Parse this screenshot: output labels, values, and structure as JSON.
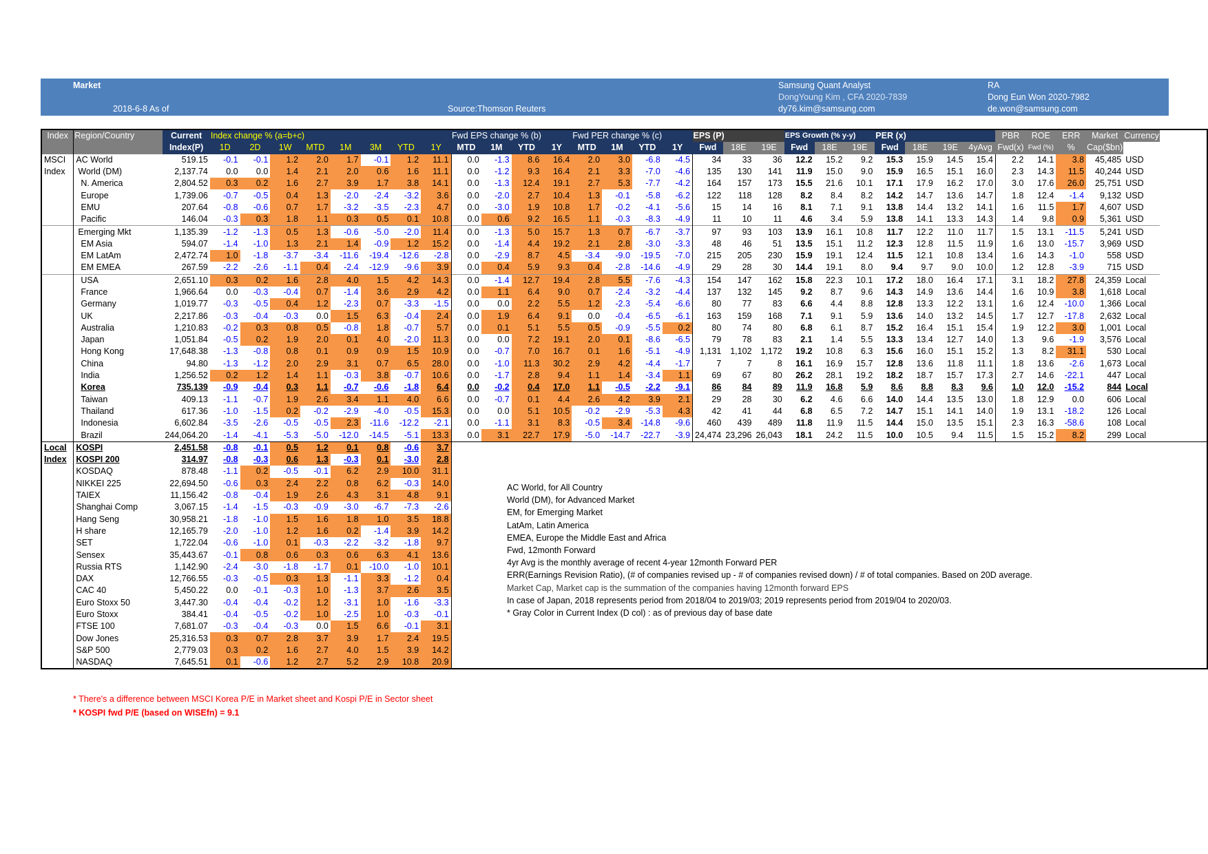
{
  "banner": {
    "market": "Market",
    "date": "2018-6-8 As of",
    "source": "Source:Thomson Reuters",
    "analyst_title": "Samsung Quant Analyst",
    "analyst_name": "DongYoung Kim , CFA 2020-7839",
    "analyst_email": "dy76.kim@samsung.com",
    "ra_title": "RA",
    "ra_name": "Dong Eun Won 2020-7982",
    "ra_email": "de.won@samsung.com"
  },
  "header1": [
    "Index",
    "Region/Country",
    "Current",
    "Index change % (a=b+c)",
    "Fwd EPS change % (b)",
    "Fwd PER change % (c)",
    "EPS (P)",
    "EPS Growth (% y-y)",
    "PER (x)",
    "PBR",
    "ROE",
    "ERR",
    "Market",
    "Currency"
  ],
  "header2": [
    "Index(P)",
    "1D",
    "2D",
    "1W",
    "MTD",
    "1M",
    "3M",
    "YTD",
    "1Y",
    "MTD",
    "1M",
    "YTD",
    "1Y",
    "MTD",
    "1M",
    "YTD",
    "1Y",
    "Fwd",
    "18E",
    "19E",
    "Fwd",
    "18E",
    "19E",
    "Fwd",
    "18E",
    "19E",
    "4yAvg",
    "Fwd(x)",
    "Fwd (%)",
    "%",
    "Cap($bn)"
  ],
  "groups": [
    "MSCI",
    "Index",
    "Local",
    "Index"
  ],
  "rows": [
    [
      "AC World",
      "519.15",
      "-0.1",
      "-0.1",
      "1.2",
      "2.0",
      "1.7",
      "-0.1",
      "1.2",
      "11.1",
      "0.0",
      "-1.3",
      "8.6",
      "16.4",
      "2.0",
      "3.0",
      "-6.8",
      "-4.5",
      "34",
      "33",
      "36",
      "12.2",
      "15.2",
      "9.2",
      "15.3",
      "15.9",
      "14.5",
      "15.4",
      "2.2",
      "14.1",
      "3.8",
      "45,485",
      "USD"
    ],
    [
      "World (DM)",
      "2,137.74",
      "0.0",
      "0.0",
      "1.4",
      "2.1",
      "2.0",
      "0.6",
      "1.6",
      "11.1",
      "0.0",
      "-1.2",
      "9.3",
      "16.4",
      "2.1",
      "3.3",
      "-7.0",
      "-4.6",
      "135",
      "130",
      "141",
      "11.9",
      "15.0",
      "9.0",
      "15.9",
      "16.5",
      "15.1",
      "16.0",
      "2.3",
      "14.3",
      "11.5",
      "40,244",
      "USD"
    ],
    [
      "N. America",
      "2,804.52",
      "0.3",
      "0.2",
      "1.6",
      "2.7",
      "3.9",
      "1.7",
      "3.8",
      "14.1",
      "0.0",
      "-1.3",
      "12.4",
      "19.1",
      "2.7",
      "5.3",
      "-7.7",
      "-4.2",
      "164",
      "157",
      "173",
      "15.5",
      "21.6",
      "10.1",
      "17.1",
      "17.9",
      "16.2",
      "17.0",
      "3.0",
      "17.6",
      "26.0",
      "25,751",
      "USD"
    ],
    [
      "Europe",
      "1,739.06",
      "-0.7",
      "-0.5",
      "0.4",
      "1.3",
      "-2.0",
      "-2.4",
      "-3.2",
      "3.6",
      "0.0",
      "-2.0",
      "2.7",
      "10.4",
      "1.3",
      "-0.1",
      "-5.8",
      "-6.2",
      "122",
      "118",
      "128",
      "8.2",
      "8.4",
      "8.2",
      "14.2",
      "14.7",
      "13.6",
      "14.7",
      "1.8",
      "12.4",
      "-1.4",
      "9,132",
      "USD"
    ],
    [
      "EMU",
      "207.64",
      "-0.8",
      "-0.6",
      "0.7",
      "1.7",
      "-3.2",
      "-3.5",
      "-2.3",
      "4.7",
      "0.0",
      "-3.0",
      "1.9",
      "10.8",
      "1.7",
      "-0.2",
      "-4.1",
      "-5.6",
      "15",
      "14",
      "16",
      "8.1",
      "7.1",
      "9.1",
      "13.8",
      "14.4",
      "13.2",
      "14.1",
      "1.6",
      "11.5",
      "1.7",
      "4,607",
      "USD"
    ],
    [
      "Pacific",
      "146.04",
      "-0.3",
      "0.3",
      "1.8",
      "1.1",
      "0.3",
      "0.5",
      "0.1",
      "10.8",
      "0.0",
      "0.6",
      "9.2",
      "16.5",
      "1.1",
      "-0.3",
      "-8.3",
      "-4.9",
      "11",
      "10",
      "11",
      "4.6",
      "3.4",
      "5.9",
      "13.8",
      "14.1",
      "13.3",
      "14.3",
      "1.4",
      "9.8",
      "0.9",
      "5,361",
      "USD"
    ],
    [
      "Emerging Mkt",
      "1,135.39",
      "-1.2",
      "-1.3",
      "0.5",
      "1.3",
      "-0.6",
      "-5.0",
      "-2.0",
      "11.4",
      "0.0",
      "-1.3",
      "5.0",
      "15.7",
      "1.3",
      "0.7",
      "-6.7",
      "-3.7",
      "97",
      "93",
      "103",
      "13.9",
      "16.1",
      "10.8",
      "11.7",
      "12.2",
      "11.0",
      "11.7",
      "1.5",
      "13.1",
      "-11.5",
      "5,241",
      "USD"
    ],
    [
      "EM Asia",
      "594.07",
      "-1.4",
      "-1.0",
      "1.3",
      "2.1",
      "1.4",
      "-0.9",
      "1.2",
      "15.2",
      "0.0",
      "-1.4",
      "4.4",
      "19.2",
      "2.1",
      "2.8",
      "-3.0",
      "-3.3",
      "48",
      "46",
      "51",
      "13.5",
      "15.1",
      "11.2",
      "12.3",
      "12.8",
      "11.5",
      "11.9",
      "1.6",
      "13.0",
      "-15.7",
      "3,969",
      "USD"
    ],
    [
      "EM LatAm",
      "2,472.74",
      "1.0",
      "-1.8",
      "-3.7",
      "-3.4",
      "-11.6",
      "-19.4",
      "-12.6",
      "-2.8",
      "0.0",
      "-2.9",
      "8.7",
      "4.5",
      "-3.4",
      "-9.0",
      "-19.5",
      "-7.0",
      "215",
      "205",
      "230",
      "15.9",
      "19.1",
      "12.4",
      "11.5",
      "12.1",
      "10.8",
      "13.4",
      "1.6",
      "14.3",
      "-1.0",
      "558",
      "USD"
    ],
    [
      "EM EMEA",
      "267.59",
      "-2.2",
      "-2.6",
      "-1.1",
      "0.4",
      "-2.4",
      "-12.9",
      "-9.6",
      "3.9",
      "0.0",
      "0.4",
      "5.9",
      "9.3",
      "0.4",
      "-2.8",
      "-14.6",
      "-4.9",
      "29",
      "28",
      "30",
      "14.4",
      "19.1",
      "8.0",
      "9.4",
      "9.7",
      "9.0",
      "10.0",
      "1.2",
      "12.8",
      "-3.9",
      "715",
      "USD"
    ],
    [
      "USA",
      "2,651.10",
      "0.3",
      "0.2",
      "1.6",
      "2.8",
      "4.0",
      "1.5",
      "4.2",
      "14.3",
      "0.0",
      "-1.4",
      "12.7",
      "19.4",
      "2.8",
      "5.5",
      "-7.6",
      "-4.3",
      "154",
      "147",
      "162",
      "15.8",
      "22.3",
      "10.1",
      "17.2",
      "18.0",
      "16.4",
      "17.1",
      "3.1",
      "18.2",
      "27.8",
      "24,359",
      "Local"
    ],
    [
      "France",
      "1,966.64",
      "0.0",
      "-0.3",
      "-0.4",
      "0.7",
      "-1.4",
      "3.6",
      "2.9",
      "4.2",
      "0.0",
      "1.1",
      "6.4",
      "9.0",
      "0.7",
      "-2.4",
      "-3.2",
      "-4.4",
      "137",
      "132",
      "145",
      "9.2",
      "8.7",
      "9.6",
      "14.3",
      "14.9",
      "13.6",
      "14.4",
      "1.6",
      "10.9",
      "3.8",
      "1,618",
      "Local"
    ],
    [
      "Germany",
      "1,019.77",
      "-0.3",
      "-0.5",
      "0.4",
      "1.2",
      "-2.3",
      "0.7",
      "-3.3",
      "-1.5",
      "0.0",
      "0.0",
      "2.2",
      "5.5",
      "1.2",
      "-2.3",
      "-5.4",
      "-6.6",
      "80",
      "77",
      "83",
      "6.6",
      "4.4",
      "8.8",
      "12.8",
      "13.3",
      "12.2",
      "13.1",
      "1.6",
      "12.4",
      "-10.0",
      "1,366",
      "Local"
    ],
    [
      "UK",
      "2,217.86",
      "-0.3",
      "-0.4",
      "-0.3",
      "0.0",
      "1.5",
      "6.3",
      "-0.4",
      "2.4",
      "0.0",
      "1.9",
      "6.4",
      "9.1",
      "0.0",
      "-0.4",
      "-6.5",
      "-6.1",
      "163",
      "159",
      "168",
      "7.1",
      "9.1",
      "5.9",
      "13.6",
      "14.0",
      "13.2",
      "14.5",
      "1.7",
      "12.7",
      "-17.8",
      "2,632",
      "Local"
    ],
    [
      "Australia",
      "1,210.83",
      "-0.2",
      "0.3",
      "0.8",
      "0.5",
      "-0.8",
      "1.8",
      "-0.7",
      "5.7",
      "0.0",
      "0.1",
      "5.1",
      "5.5",
      "0.5",
      "-0.9",
      "-5.5",
      "0.2",
      "80",
      "74",
      "80",
      "6.8",
      "6.1",
      "8.7",
      "15.2",
      "16.4",
      "15.1",
      "15.4",
      "1.9",
      "12.2",
      "3.0",
      "1,001",
      "Local"
    ],
    [
      "Japan",
      "1,051.84",
      "-0.5",
      "0.2",
      "1.9",
      "2.0",
      "0.1",
      "4.0",
      "-2.0",
      "11.3",
      "0.0",
      "0.0",
      "7.2",
      "19.1",
      "2.0",
      "0.1",
      "-8.6",
      "-6.5",
      "79",
      "78",
      "83",
      "2.1",
      "1.4",
      "5.5",
      "13.3",
      "13.4",
      "12.7",
      "14.0",
      "1.3",
      "9.6",
      "-1.9",
      "3,576",
      "Local"
    ],
    [
      "Hong Kong",
      "17,648.38",
      "-1.3",
      "-0.8",
      "0.8",
      "0.1",
      "0.9",
      "0.9",
      "1.5",
      "10.9",
      "0.0",
      "-0.7",
      "7.0",
      "16.7",
      "0.1",
      "1.6",
      "-5.1",
      "-4.9",
      "1,131",
      "1,102",
      "1,172",
      "19.2",
      "10.8",
      "6.3",
      "15.6",
      "16.0",
      "15.1",
      "15.2",
      "1.3",
      "8.2",
      "31.1",
      "530",
      "Local"
    ],
    [
      "China",
      "94.80",
      "-1.3",
      "-1.2",
      "2.0",
      "2.9",
      "3.1",
      "0.7",
      "6.5",
      "28.0",
      "0.0",
      "-1.0",
      "11.3",
      "30.2",
      "2.9",
      "4.2",
      "-4.4",
      "-1.7",
      "7",
      "7",
      "8",
      "16.1",
      "16.9",
      "15.7",
      "12.8",
      "13.6",
      "11.8",
      "11.1",
      "1.8",
      "13.6",
      "-2.6",
      "1,673",
      "Local"
    ],
    [
      "India",
      "1,256.52",
      "0.2",
      "1.2",
      "1.4",
      "1.1",
      "-0.3",
      "3.8",
      "-0.7",
      "10.6",
      "0.0",
      "-1.7",
      "2.8",
      "9.4",
      "1.1",
      "1.4",
      "-3.4",
      "1.1",
      "69",
      "67",
      "80",
      "26.2",
      "28.1",
      "19.2",
      "18.2",
      "18.7",
      "15.7",
      "17.3",
      "2.7",
      "14.6",
      "-22.1",
      "447",
      "Local"
    ],
    [
      "Korea",
      "735.139",
      "-0.9",
      "-0.4",
      "0.3",
      "1.1",
      "-0.7",
      "-0.6",
      "-1.8",
      "6.4",
      "0.0",
      "-0.2",
      "0.4",
      "17.0",
      "1.1",
      "-0.5",
      "-2.2",
      "-9.1",
      "86",
      "84",
      "89",
      "11.9",
      "16.8",
      "5.9",
      "8.6",
      "8.8",
      "8.3",
      "9.6",
      "1.0",
      "12.0",
      "-15.2",
      "844",
      "Local"
    ],
    [
      "Taiwan",
      "409.13",
      "-1.1",
      "-0.7",
      "1.9",
      "2.6",
      "3.4",
      "1.1",
      "4.0",
      "6.6",
      "0.0",
      "-0.7",
      "0.1",
      "4.4",
      "2.6",
      "4.2",
      "3.9",
      "2.1",
      "29",
      "28",
      "30",
      "6.2",
      "4.6",
      "6.6",
      "14.0",
      "14.4",
      "13.5",
      "13.0",
      "1.8",
      "12.9",
      "0.0",
      "606",
      "Local"
    ],
    [
      "Thailand",
      "617.36",
      "-1.0",
      "-1.5",
      "0.2",
      "-0.2",
      "-2.9",
      "-4.0",
      "-0.5",
      "15.3",
      "0.0",
      "0.0",
      "5.1",
      "10.5",
      "-0.2",
      "-2.9",
      "-5.3",
      "4.3",
      "42",
      "41",
      "44",
      "6.8",
      "6.5",
      "7.2",
      "14.7",
      "15.1",
      "14.1",
      "14.0",
      "1.9",
      "13.1",
      "-18.2",
      "126",
      "Local"
    ],
    [
      "Indonesia",
      "6,602.84",
      "-3.5",
      "-2.6",
      "-0.5",
      "-0.5",
      "2.3",
      "-11.6",
      "-12.2",
      "-2.1",
      "0.0",
      "-1.1",
      "3.1",
      "8.3",
      "-0.5",
      "3.4",
      "-14.8",
      "-9.6",
      "460",
      "439",
      "489",
      "11.8",
      "11.9",
      "11.5",
      "14.4",
      "15.0",
      "13.5",
      "15.1",
      "2.3",
      "16.3",
      "-58.6",
      "108",
      "Local"
    ],
    [
      "Brazil",
      "244,064.20",
      "-1.4",
      "-4.1",
      "-5.3",
      "-5.0",
      "-12.0",
      "-14.5",
      "-5.1",
      "13.3",
      "0.0",
      "3.1",
      "22.7",
      "17.9",
      "-5.0",
      "-14.7",
      "-22.7",
      "-3.9",
      "24,474",
      "23,296",
      "26,043",
      "18.1",
      "24.2",
      "11.5",
      "10.0",
      "10.5",
      "9.4",
      "11.5",
      "1.5",
      "15.2",
      "8.2",
      "299",
      "Local"
    ]
  ],
  "local_rows": [
    [
      "KOSPI",
      "2,451.58",
      "-0.8",
      "-0.1",
      "0.5",
      "1.2",
      "0.1",
      "0.8",
      "-0.6",
      "3.7"
    ],
    [
      "KOSPI 200",
      "314.97",
      "-0.8",
      "-0.3",
      "0.6",
      "1.3",
      "-0.3",
      "0.1",
      "-3.0",
      "2.8"
    ],
    [
      "KOSDAQ",
      "878.48",
      "-1.1",
      "0.2",
      "-0.5",
      "-0.1",
      "6.2",
      "2.9",
      "10.0",
      "31.1"
    ],
    [
      "NIKKEI 225",
      "22,694.50",
      "-0.6",
      "0.3",
      "2.4",
      "2.2",
      "0.8",
      "6.2",
      "-0.3",
      "14.0"
    ],
    [
      "TAIEX",
      "11,156.42",
      "-0.8",
      "-0.4",
      "1.9",
      "2.6",
      "4.3",
      "3.1",
      "4.8",
      "9.1"
    ],
    [
      "Shanghai Comp",
      "3,067.15",
      "-1.4",
      "-1.5",
      "-0.3",
      "-0.9",
      "-3.0",
      "-6.7",
      "-7.3",
      "-2.6"
    ],
    [
      "Hang Seng",
      "30,958.21",
      "-1.8",
      "-1.0",
      "1.5",
      "1.6",
      "1.8",
      "1.0",
      "3.5",
      "18.8"
    ],
    [
      "H share",
      "12,165.79",
      "-2.0",
      "-1.0",
      "1.2",
      "1.6",
      "0.2",
      "-1.4",
      "3.9",
      "14.2"
    ],
    [
      "SET",
      "1,722.04",
      "-0.6",
      "-1.0",
      "0.1",
      "-0.3",
      "-2.2",
      "-3.2",
      "-1.8",
      "9.7"
    ],
    [
      "Sensex",
      "35,443.67",
      "-0.1",
      "0.8",
      "0.6",
      "0.3",
      "0.6",
      "6.3",
      "4.1",
      "13.6"
    ],
    [
      "Russia RTS",
      "1,142.90",
      "-2.4",
      "-3.0",
      "-1.8",
      "-1.7",
      "0.1",
      "-10.0",
      "-1.0",
      "10.1"
    ],
    [
      "DAX",
      "12,766.55",
      "-0.3",
      "-0.5",
      "0.3",
      "1.3",
      "-1.1",
      "3.3",
      "-1.2",
      "0.4"
    ],
    [
      "CAC 40",
      "5,450.22",
      "0.0",
      "-0.1",
      "-0.3",
      "1.0",
      "-1.3",
      "3.7",
      "2.6",
      "3.5"
    ],
    [
      "Euro Stoxx 50",
      "3,447.30",
      "-0.4",
      "-0.4",
      "-0.2",
      "1.2",
      "-3.1",
      "1.0",
      "-1.6",
      "-3.3"
    ],
    [
      "Euro Stoxx",
      "384.41",
      "-0.4",
      "-0.5",
      "-0.2",
      "1.0",
      "-2.5",
      "1.0",
      "-0.3",
      "-0.1"
    ],
    [
      "FTSE 100",
      "7,681.07",
      "-0.3",
      "-0.4",
      "-0.3",
      "0.0",
      "1.5",
      "6.6",
      "-0.1",
      "3.1"
    ],
    [
      "Dow Jones",
      "25,316.53",
      "0.3",
      "0.7",
      "2.8",
      "3.7",
      "3.9",
      "1.7",
      "2.4",
      "19.5"
    ],
    [
      "S&P 500",
      "2,779.03",
      "0.3",
      "0.2",
      "1.6",
      "2.7",
      "4.0",
      "1.5",
      "3.9",
      "14.2"
    ],
    [
      "NASDAQ",
      "7,645.51",
      "0.1",
      "-0.6",
      "1.2",
      "2.7",
      "5.2",
      "2.9",
      "10.8",
      "20.9"
    ]
  ],
  "notes": [
    "AC World, for All Country",
    "World (DM), for Advanced Market",
    "EM, for Emerging Market",
    "LatAm, Latin America",
    "EMEA, Europe the Middle East and Africa",
    "Fwd, 12month Forward",
    "4yr Avg is the monthly average of recent 4-year 12month Forward PER",
    "ERR(Earnings Revision Ratio), (# of companies revised up - # of companies revised down) / # of total companies. Based on 20D average.",
    "Market Cap, Market cap is the summation of the companies having 12month forward EPS",
    "In case of Japan, 2018 represents period from 2018/04 to 2019/03; 2019 represents period from 2019/04 to 2020/03.",
    "* Gray Color in Current Index (D col) : as of previous day of base date"
  ],
  "footnotes": [
    "* There's a difference between MSCI Korea P/E in Market sheet and Kospi P/E in Sector sheet",
    "* KOSPI fwd P/E (based on WISEfn) = 9.1"
  ],
  "colors": {
    "banner": "#4f81bd",
    "positive_fill": "#f79646",
    "negative_text": "#0000ff",
    "header_gray": "#7f7f7f",
    "header_navy": "#1f3864"
  }
}
